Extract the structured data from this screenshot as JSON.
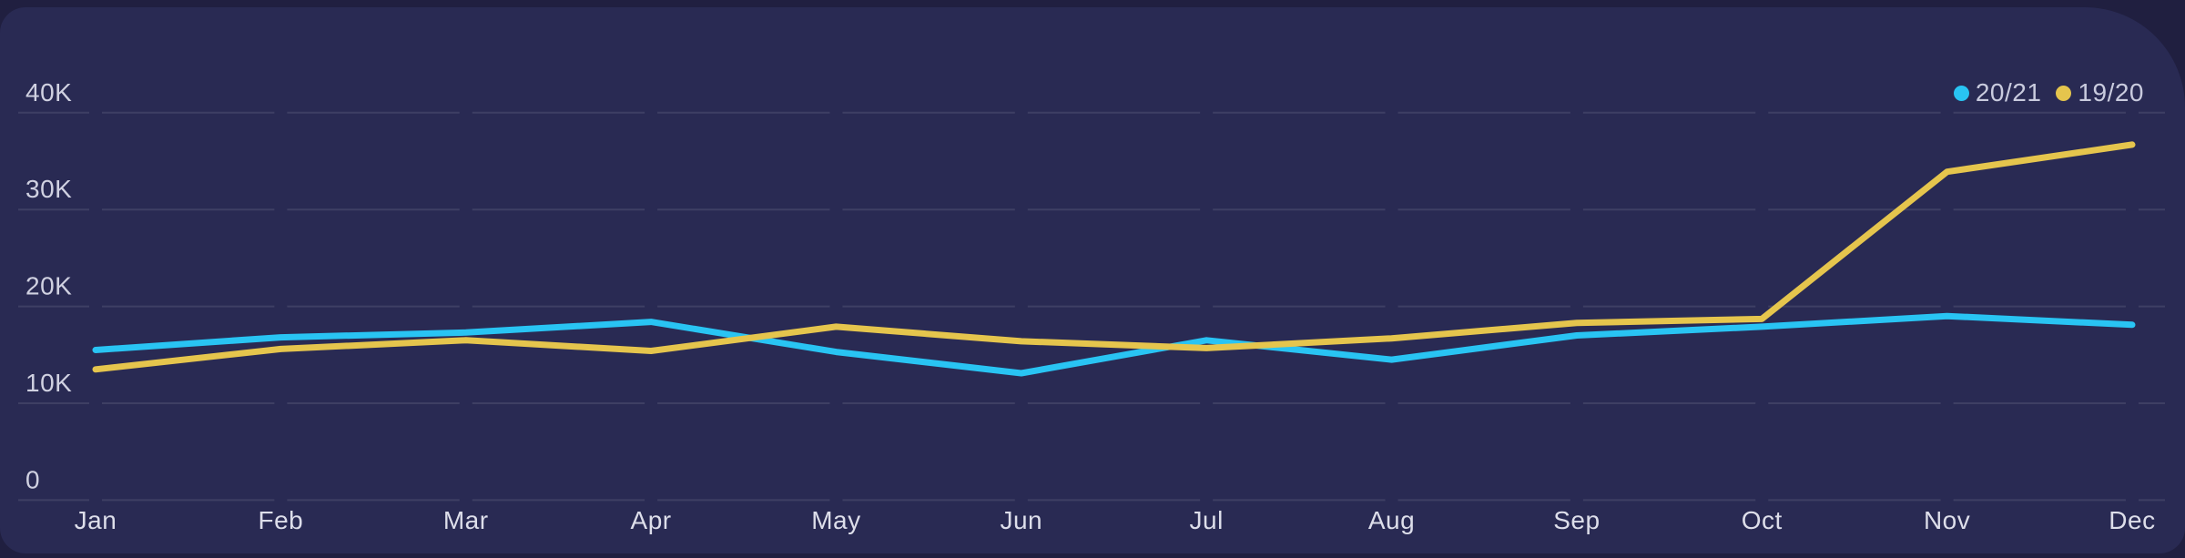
{
  "chart_data": {
    "type": "line",
    "title": "",
    "unit": "count",
    "x_categories": [
      "Jan",
      "Feb",
      "Mar",
      "Apr",
      "May",
      "Jun",
      "Jul",
      "Aug",
      "Sep",
      "Oct",
      "Nov",
      "Dec"
    ],
    "series": [
      {
        "name": "20/21",
        "color": "#29c4f3",
        "values": [
          15500,
          16800,
          17300,
          18400,
          15300,
          13100,
          16500,
          14500,
          17000,
          17900,
          19000,
          18100
        ]
      },
      {
        "name": "19/20",
        "color": "#e5c54d",
        "values": [
          13500,
          15600,
          16500,
          15400,
          17900,
          16400,
          15700,
          16700,
          18300,
          18700,
          33900,
          36700
        ]
      }
    ],
    "y_ticks": [
      {
        "label": "40K",
        "value": 40000
      },
      {
        "label": "30K",
        "value": 30000
      },
      {
        "label": "20K",
        "value": 20000
      },
      {
        "label": "10K",
        "value": 10000
      },
      {
        "label": "0",
        "value": 0
      }
    ],
    "ylim": [
      0,
      40000
    ],
    "grid": "horizontal, dashed with gaps at month columns",
    "legend_position": "top-right",
    "legend": [
      "20/21",
      "19/20"
    ]
  },
  "colors": {
    "page_background": "#201f40",
    "card_background": "#292a53",
    "gridline": "rgba(255,255,255,0.10)",
    "y_tick_text": "#d0d1e1",
    "x_tick_text": "#dddeea",
    "legend_text": "#c9cbde",
    "series_20_21": "#29c4f3",
    "series_19_20": "#e5c54d"
  }
}
